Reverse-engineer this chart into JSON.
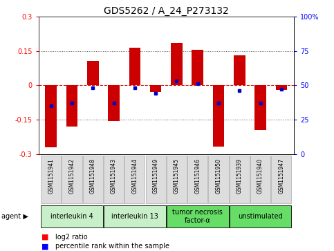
{
  "title": "GDS5262 / A_24_P273132",
  "samples": [
    "GSM1151941",
    "GSM1151942",
    "GSM1151948",
    "GSM1151943",
    "GSM1151944",
    "GSM1151949",
    "GSM1151945",
    "GSM1151946",
    "GSM1151950",
    "GSM1151939",
    "GSM1151940",
    "GSM1151947"
  ],
  "log2_ratios": [
    -0.27,
    -0.18,
    0.105,
    -0.155,
    0.165,
    -0.03,
    0.185,
    0.155,
    -0.265,
    0.13,
    -0.195,
    -0.02
  ],
  "percentile_ranks": [
    35,
    37,
    48,
    37,
    48,
    44,
    53,
    51,
    37,
    46,
    37,
    47
  ],
  "groups": [
    {
      "label": "interleukin 4",
      "start": 0,
      "end": 2,
      "color": "#c8f0c8"
    },
    {
      "label": "interleukin 13",
      "start": 3,
      "end": 5,
      "color": "#c8f0c8"
    },
    {
      "label": "tumor necrosis\nfactor-α",
      "start": 6,
      "end": 8,
      "color": "#66dd66"
    },
    {
      "label": "unstimulated",
      "start": 9,
      "end": 11,
      "color": "#66dd66"
    }
  ],
  "ylim": [
    -0.3,
    0.3
  ],
  "yticks_left": [
    -0.3,
    -0.15,
    0,
    0.15,
    0.3
  ],
  "yticks_right": [
    0,
    25,
    50,
    75,
    100
  ],
  "bar_color": "#cc0000",
  "dot_color": "#0000cc",
  "hline_color": "#cc0000",
  "dot_color_grid": "#555555",
  "bg_color": "#ffffff",
  "plot_bg": "#ffffff",
  "title_fontsize": 10,
  "tick_fontsize": 7,
  "sample_fontsize": 5.5,
  "group_fontsize": 7,
  "legend_fontsize": 7
}
